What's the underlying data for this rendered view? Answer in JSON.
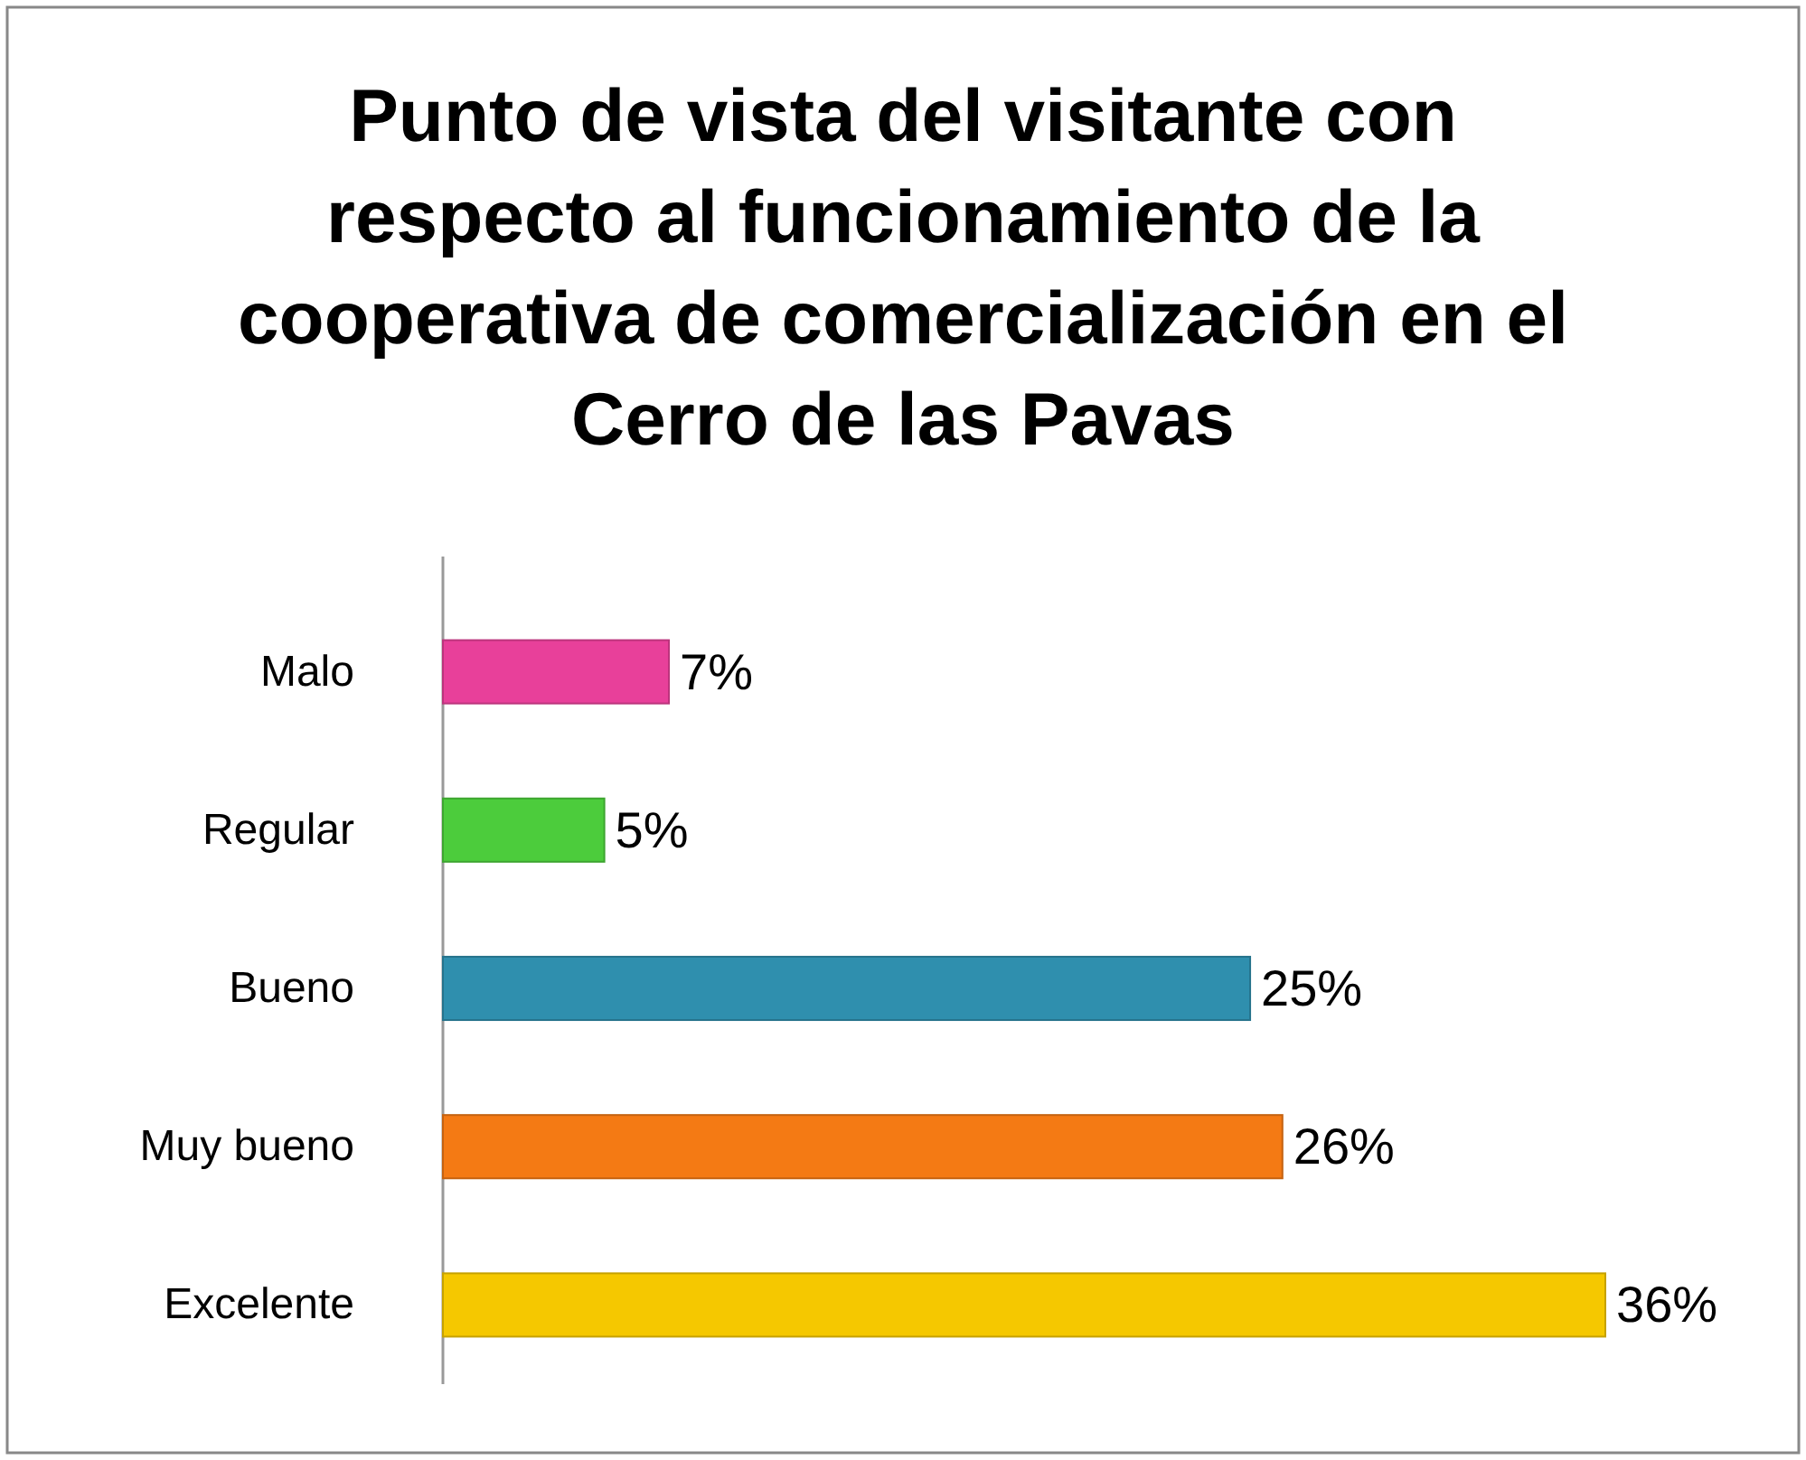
{
  "chart_data": {
    "type": "bar",
    "orientation": "horizontal",
    "title": "Punto de vista del visitante con respecto al funcionamiento de la cooperativa de comercialización en el Cerro de las Pavas",
    "categories": [
      "Malo",
      "Regular",
      "Bueno",
      "Muy bueno",
      "Excelente"
    ],
    "values": [
      7,
      5,
      25,
      26,
      36
    ],
    "colors": [
      "#e8409a",
      "#4ccc3c",
      "#2f8fae",
      "#f47a14",
      "#f5c800"
    ],
    "value_labels": [
      "7%",
      "5%",
      "25%",
      "26%",
      "36%"
    ]
  }
}
